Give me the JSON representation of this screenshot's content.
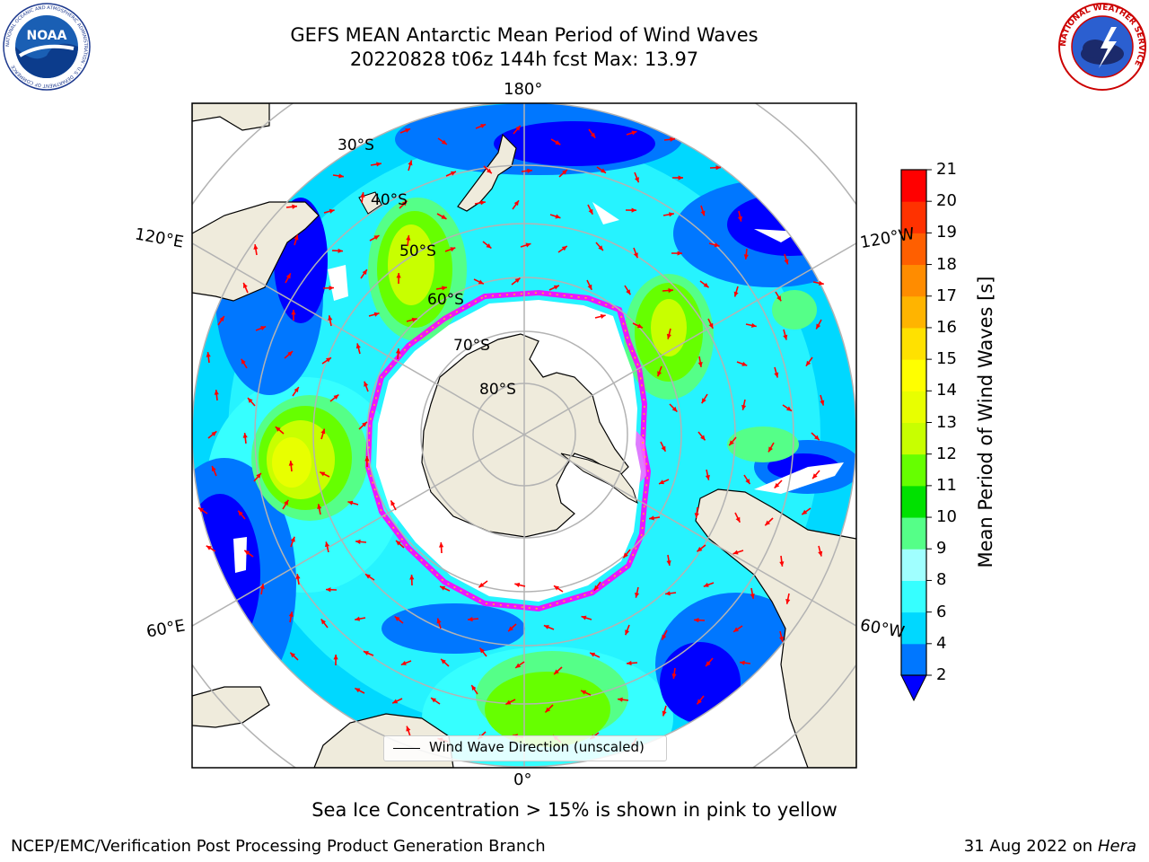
{
  "header": {
    "title_line1": "GEFS MEAN Antarctic Mean Period of Wind Waves",
    "title_line2": "20220828 t06z 144h fcst   Max: 13.97"
  },
  "logos": {
    "left": {
      "name": "noaa-logo",
      "text": "NOAA",
      "ring_text": "NATIONAL OCEANIC AND ATMOSPHERIC ADMINISTRATION · U.S. DEPARTMENT OF COMMERCE"
    },
    "right": {
      "name": "nws-logo",
      "ring_text": "NATIONAL WEATHER SERVICE"
    }
  },
  "map": {
    "projection": "south-polar-stereographic",
    "lon_labels": {
      "top": "180°",
      "bottom": "0°",
      "left_upper": "120°E",
      "left_lower": "60°E",
      "right_upper": "120°W",
      "right_lower": "60°W"
    },
    "lat_labels": [
      "30°S",
      "40°S",
      "50°S",
      "60°S",
      "70°S",
      "80°S"
    ],
    "legend_label": "Wind Wave Direction (unscaled)",
    "land_color": "#efebdc",
    "ice_colors": [
      "#ff00ff",
      "#ffff00"
    ]
  },
  "colorbar": {
    "title": "Mean Period of Wind Waves [s]",
    "ticks": [
      "2",
      "4",
      "6",
      "8",
      "9",
      "10",
      "11",
      "12",
      "13",
      "14",
      "15",
      "16",
      "17",
      "18",
      "19",
      "20",
      "21"
    ],
    "colors": [
      "#0077ff",
      "#00d8ff",
      "#36ffff",
      "#a0ffff",
      "#55ff88",
      "#00e100",
      "#66ff00",
      "#c8ff00",
      "#e8ff00",
      "#ffff00",
      "#ffe100",
      "#ffb400",
      "#ff8c00",
      "#ff5f00",
      "#ff3200",
      "#ff0000"
    ],
    "under_color": "#0000ff"
  },
  "footer": {
    "note": "Sea Ice Concentration > 15% is shown in pink to yellow",
    "credit": "NCEP/EMC/Verification Post Processing Product Generation Branch",
    "date": "31 Aug 2022 on",
    "host": "Hera"
  }
}
